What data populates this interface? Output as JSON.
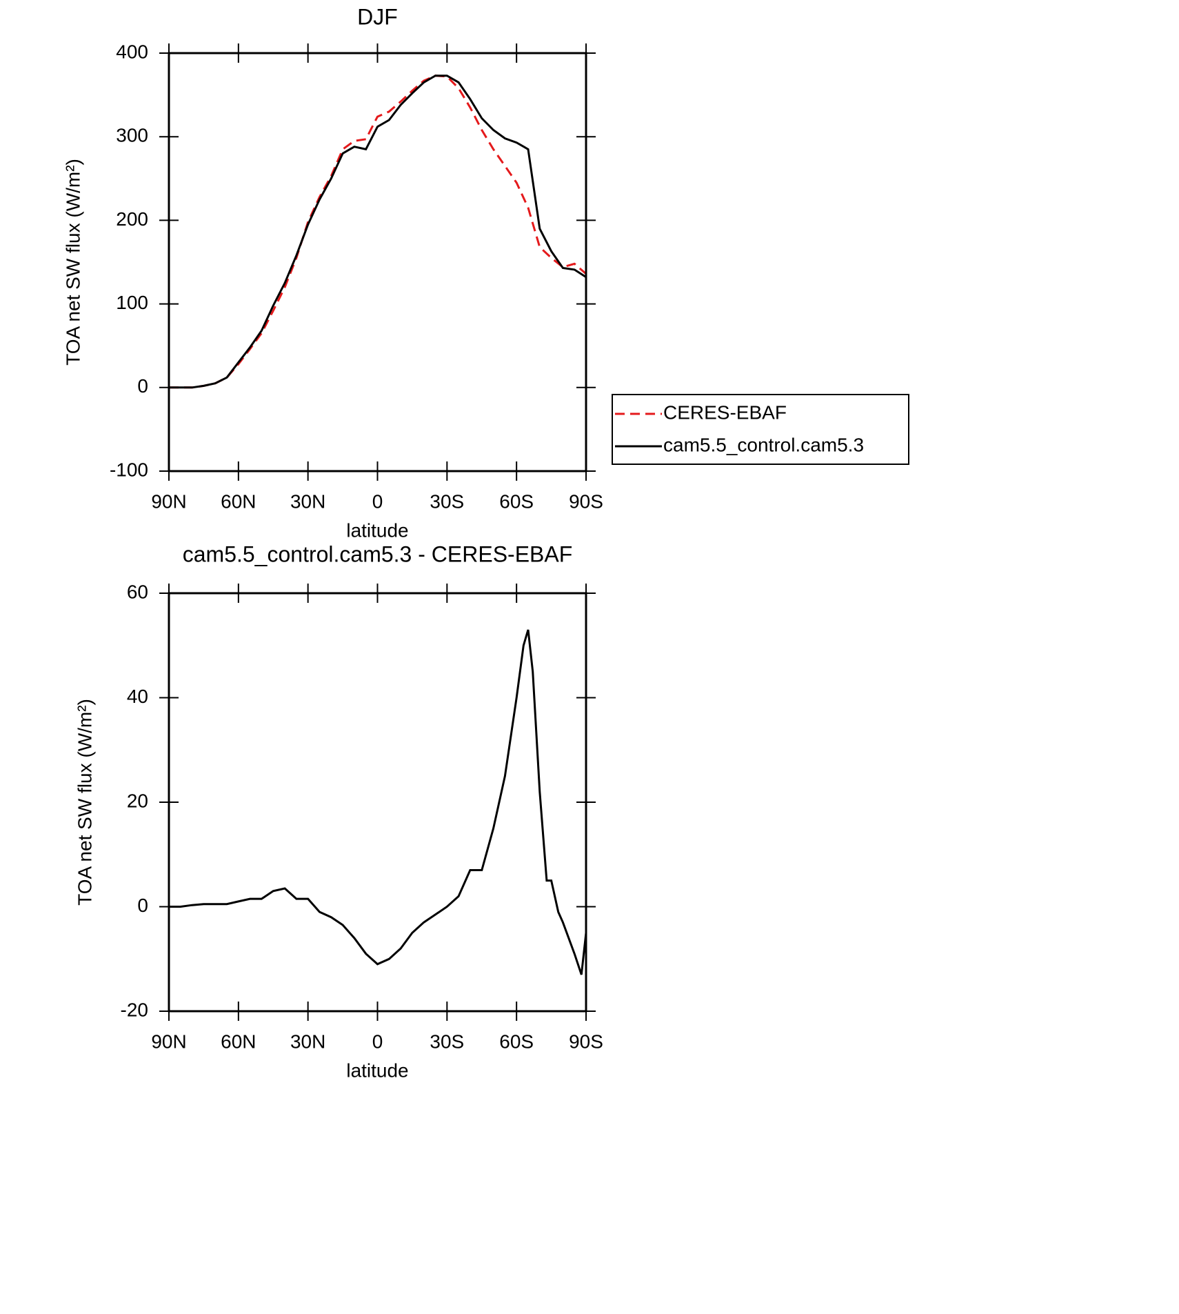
{
  "chart_data": [
    {
      "type": "line",
      "title": "DJF",
      "xlabel": "latitude",
      "ylabel": "TOA net SW flux (W/m²)",
      "x": [
        90,
        85,
        80,
        75,
        70,
        65,
        60,
        55,
        50,
        45,
        40,
        35,
        30,
        25,
        20,
        15,
        10,
        5,
        0,
        -5,
        -10,
        -15,
        -20,
        -25,
        -30,
        -35,
        -40,
        -45,
        -50,
        -55,
        -60,
        -65,
        -70,
        -75,
        -80,
        -85,
        -90
      ],
      "series": [
        {
          "name": "CERES-EBAF",
          "color": "#e41a1c",
          "linestyle": "dashed",
          "values": [
            0,
            0,
            0,
            2,
            5,
            12,
            28,
            46,
            65,
            92,
            120,
            155,
            198,
            228,
            253,
            285,
            295,
            297,
            324,
            330,
            342,
            355,
            367,
            373,
            372,
            358,
            335,
            308,
            285,
            265,
            245,
            215,
            168,
            155,
            144,
            148,
            136
          ]
        },
        {
          "name": "cam5.5_control.cam5.3",
          "color": "#000000",
          "linestyle": "solid",
          "values": [
            0,
            0,
            0,
            2,
            5,
            12,
            30,
            48,
            68,
            98,
            125,
            158,
            195,
            225,
            250,
            280,
            288,
            285,
            312,
            320,
            338,
            352,
            365,
            373,
            373,
            365,
            345,
            322,
            308,
            298,
            293,
            285,
            190,
            163,
            143,
            141,
            132
          ]
        }
      ],
      "xlim": [
        90,
        -90
      ],
      "xticks": [
        {
          "value": 90,
          "label": "90N"
        },
        {
          "value": 60,
          "label": "60N"
        },
        {
          "value": 30,
          "label": "30N"
        },
        0,
        {
          "value": -30,
          "label": "30S"
        },
        {
          "value": -60,
          "label": "60S"
        },
        {
          "value": -90,
          "label": "90S"
        }
      ],
      "ylim": [
        -100,
        400
      ],
      "yticks": [
        -100,
        0,
        100,
        200,
        300,
        400
      ],
      "legend": "right"
    },
    {
      "type": "line",
      "title": "cam5.5_control.cam5.3 - CERES-EBAF",
      "xlabel": "latitude",
      "ylabel": "TOA net SW flux (W/m²)",
      "x": [
        90,
        85,
        80,
        75,
        70,
        65,
        60,
        55,
        50,
        45,
        40,
        35,
        30,
        25,
        20,
        15,
        10,
        5,
        0,
        -5,
        -10,
        -15,
        -20,
        -25,
        -30,
        -35,
        -40,
        -45,
        -50,
        -55,
        -60,
        -63,
        -65,
        -67,
        -70,
        -73,
        -75,
        -78,
        -80,
        -85,
        -88,
        -90
      ],
      "series": [
        {
          "color": "#000000",
          "linestyle": "solid",
          "values": [
            0,
            0,
            0.3,
            0.5,
            0.5,
            0.5,
            1,
            1.5,
            1.5,
            3,
            3.5,
            1.5,
            1.5,
            -1,
            -2,
            -3.5,
            -6,
            -9,
            -11,
            -10,
            -8,
            -5,
            -3,
            -1.5,
            0,
            2,
            7,
            7,
            15,
            25,
            40,
            50,
            53,
            45,
            22,
            5,
            5,
            -1,
            -3,
            -9,
            -13,
            -5
          ]
        }
      ],
      "xlim": [
        90,
        -90
      ],
      "xticks": [
        {
          "value": 90,
          "label": "90N"
        },
        {
          "value": 60,
          "label": "60N"
        },
        {
          "value": 30,
          "label": "30N"
        },
        0,
        {
          "value": -30,
          "label": "30S"
        },
        {
          "value": -60,
          "label": "60S"
        },
        {
          "value": -90,
          "label": "90S"
        }
      ],
      "ylim": [
        -20,
        60
      ],
      "yticks": [
        -20,
        0,
        20,
        40,
        60
      ]
    }
  ]
}
